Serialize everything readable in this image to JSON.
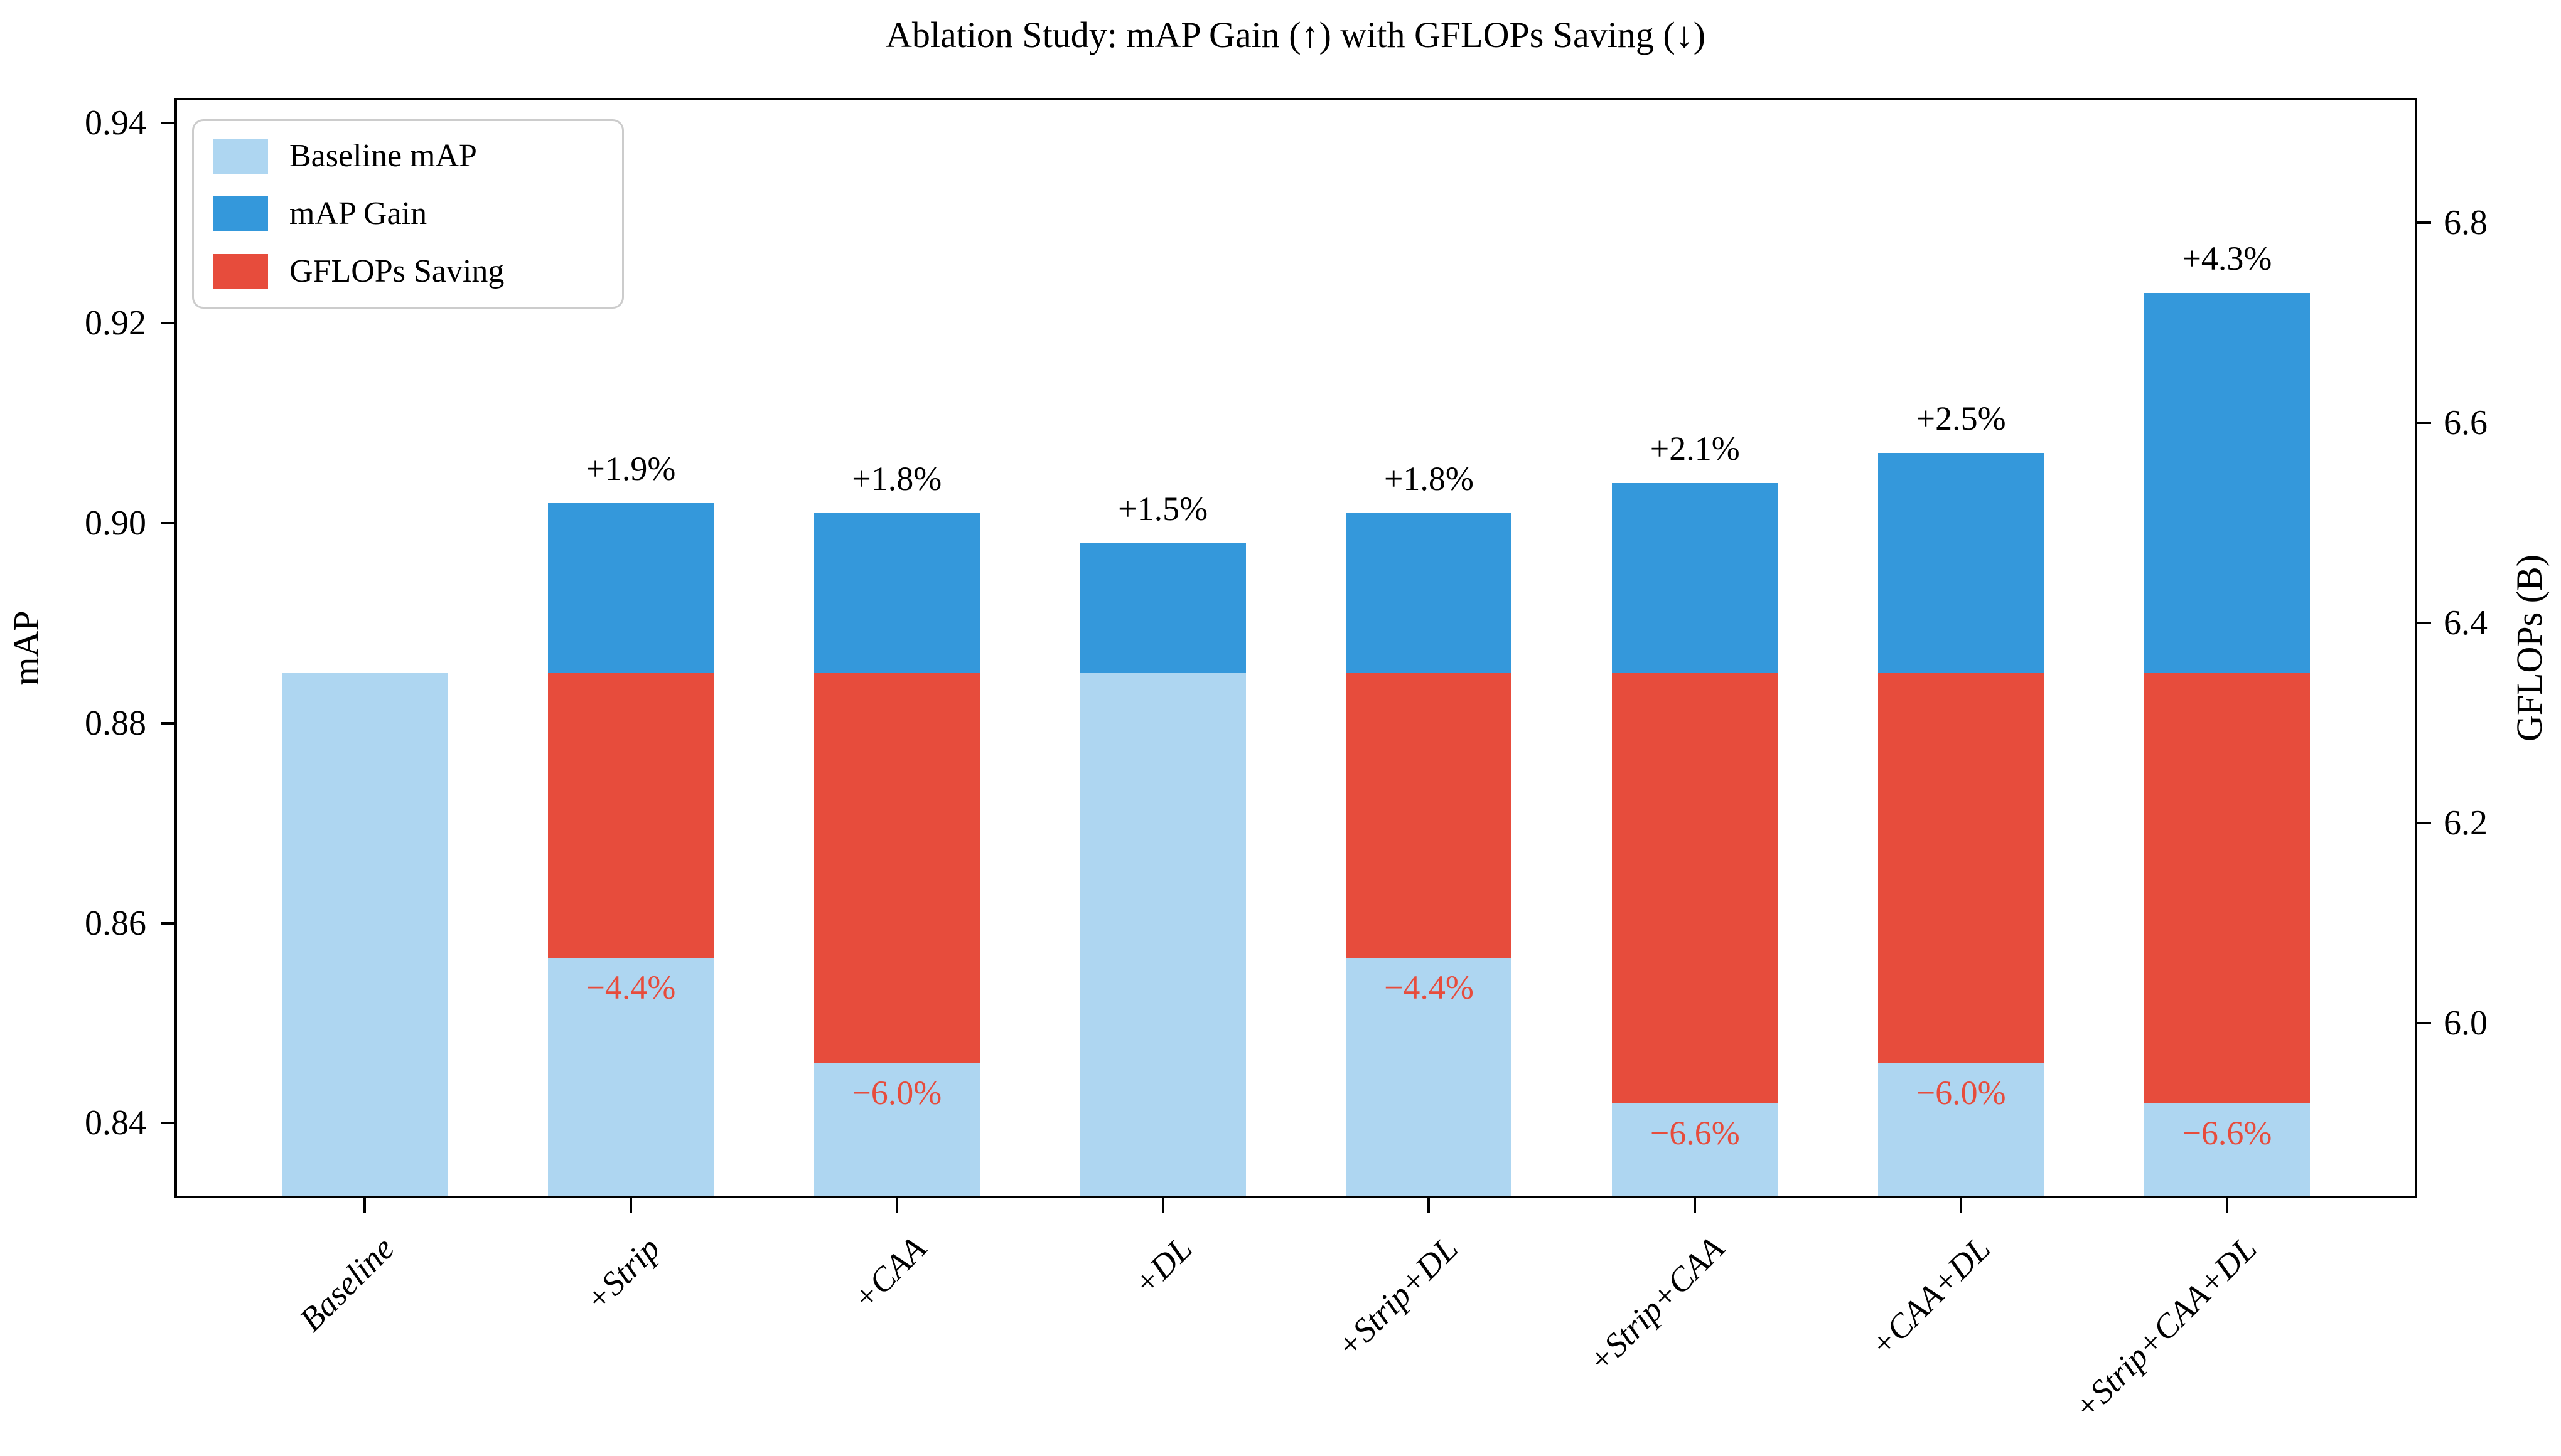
{
  "figure": {
    "title": "Ablation Study: mAP Gain (↑) with GFLOPs Saving (↓)"
  },
  "chart_data": {
    "type": "bar",
    "title": "Ablation Study: mAP Gain (↑) with GFLOPs Saving (↓)",
    "grid": false,
    "legend_position": "upper-left",
    "legend": [
      {
        "label": "Baseline mAP",
        "color": "#AED6F1"
      },
      {
        "label": "mAP Gain",
        "color": "#3498DB"
      },
      {
        "label": "GFLOPs Saving",
        "color": "#E74C3C"
      }
    ],
    "colors": {
      "baseline_map": "#AED6F1",
      "map_gain": "#3498DB",
      "gflops_saving": "#E74C3C",
      "saving_label_text": "#E74C3C",
      "gain_label_text": "#000000"
    },
    "left_axis": {
      "label": "mAP",
      "ticks": [
        0.84,
        0.86,
        0.88,
        0.9,
        0.92,
        0.94
      ],
      "lim": [
        0.8325,
        0.9425
      ]
    },
    "right_axis": {
      "label": "GFLOPs (B)",
      "ticks": [
        6.0,
        6.2,
        6.4,
        6.6,
        6.8
      ],
      "lim": [
        5.825,
        6.925
      ]
    },
    "baseline_map": 0.885,
    "categories": [
      "Baseline",
      "+Strip",
      "+CAA",
      "+DL",
      "+Strip+DL",
      "+Strip+CAA",
      "+CAA+DL",
      "+Strip+CAA+DL"
    ],
    "bars": [
      {
        "label": "Baseline",
        "map_total": 0.885,
        "gain_label": null,
        "saving_label": null,
        "red_top_map": null,
        "red_bottom_map": null,
        "gflops_band": null
      },
      {
        "label": "+Strip",
        "map_total": 0.902,
        "gain_label": "+1.9%",
        "saving_label": "−4.4%",
        "red_top_map": 0.885,
        "red_bottom_map": 0.8565,
        "gflops_band": {
          "top": 6.35,
          "bottom": 6.07
        }
      },
      {
        "label": "+CAA",
        "map_total": 0.901,
        "gain_label": "+1.8%",
        "saving_label": "−6.0%",
        "red_top_map": 0.885,
        "red_bottom_map": 0.846,
        "gflops_band": {
          "top": 6.35,
          "bottom": 5.96
        }
      },
      {
        "label": "+DL",
        "map_total": 0.898,
        "gain_label": "+1.5%",
        "saving_label": null,
        "red_top_map": null,
        "red_bottom_map": null,
        "gflops_band": null
      },
      {
        "label": "+Strip+DL",
        "map_total": 0.901,
        "gain_label": "+1.8%",
        "saving_label": "−4.4%",
        "red_top_map": 0.885,
        "red_bottom_map": 0.8565,
        "gflops_band": {
          "top": 6.35,
          "bottom": 6.07
        }
      },
      {
        "label": "+Strip+CAA",
        "map_total": 0.904,
        "gain_label": "+2.1%",
        "saving_label": "−6.6%",
        "red_top_map": 0.885,
        "red_bottom_map": 0.842,
        "gflops_band": {
          "top": 6.35,
          "bottom": 5.92
        }
      },
      {
        "label": "+CAA+DL",
        "map_total": 0.907,
        "gain_label": "+2.5%",
        "saving_label": "−6.0%",
        "red_top_map": 0.885,
        "red_bottom_map": 0.846,
        "gflops_band": {
          "top": 6.35,
          "bottom": 5.96
        }
      },
      {
        "label": "+Strip+CAA+DL",
        "map_total": 0.923,
        "gain_label": "+4.3%",
        "saving_label": "−6.6%",
        "red_top_map": 0.885,
        "red_bottom_map": 0.842,
        "gflops_band": {
          "top": 6.35,
          "bottom": 5.92
        }
      }
    ]
  }
}
